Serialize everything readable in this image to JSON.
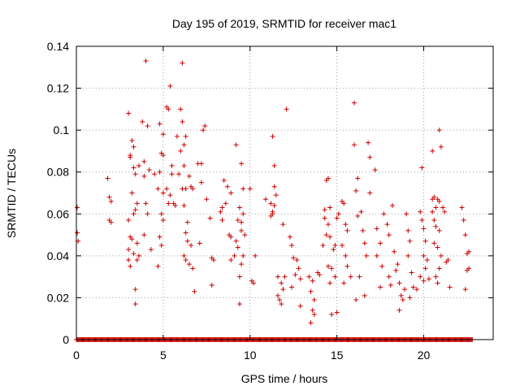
{
  "chart_data": {
    "type": "scatter",
    "title": "Day 195 of 2019, SRMTID for receiver mac1",
    "xlabel": "GPS time / hours",
    "ylabel": "SRMTID / TECUs",
    "xlim": [
      0,
      24
    ],
    "ylim": [
      0,
      0.14
    ],
    "xticks": [
      0,
      5,
      10,
      15,
      20
    ],
    "xtick_labels": [
      "0",
      "5",
      "10",
      "15",
      "20"
    ],
    "yticks": [
      0,
      0.02,
      0.04,
      0.06,
      0.08,
      0.1,
      0.12,
      0.14
    ],
    "ytick_labels": [
      "0",
      "0.02",
      "0.04",
      "0.06",
      "0.08",
      "0.1",
      "0.12",
      "0.14"
    ],
    "grid": true,
    "marker": "plus",
    "color": "#cc0000",
    "zero_baseline": {
      "x_start": 0,
      "x_end": 22.8,
      "step": 0.05,
      "y": 0
    },
    "series": [
      {
        "name": "SRMTID",
        "points": [
          [
            0.05,
            0.063
          ],
          [
            0.05,
            0.051
          ],
          [
            0.1,
            0.047
          ],
          [
            1.8,
            0.077
          ],
          [
            1.9,
            0.068
          ],
          [
            2.0,
            0.066
          ],
          [
            1.9,
            0.057
          ],
          [
            2.0,
            0.056
          ],
          [
            3.0,
            0.108
          ],
          [
            3.1,
            0.088
          ],
          [
            3.2,
            0.095
          ],
          [
            3.3,
            0.092
          ],
          [
            3.1,
            0.087
          ],
          [
            3.3,
            0.082
          ],
          [
            3.4,
            0.079
          ],
          [
            3.6,
            0.083
          ],
          [
            3.2,
            0.07
          ],
          [
            3.4,
            0.062
          ],
          [
            3.5,
            0.065
          ],
          [
            3.3,
            0.06
          ],
          [
            3.0,
            0.057
          ],
          [
            3.1,
            0.049
          ],
          [
            3.2,
            0.048
          ],
          [
            3.5,
            0.046
          ],
          [
            3.0,
            0.043
          ],
          [
            3.3,
            0.041
          ],
          [
            3.6,
            0.04
          ],
          [
            3.5,
            0.038
          ],
          [
            3.0,
            0.038
          ],
          [
            3.1,
            0.035
          ],
          [
            3.4,
            0.024
          ],
          [
            3.4,
            0.017
          ],
          [
            3.8,
            0.104
          ],
          [
            4.1,
            0.102
          ],
          [
            4.0,
            0.133
          ],
          [
            3.9,
            0.085
          ],
          [
            3.9,
            0.078
          ],
          [
            4.2,
            0.081
          ],
          [
            4.5,
            0.079
          ],
          [
            4.0,
            0.065
          ],
          [
            4.1,
            0.06
          ],
          [
            3.9,
            0.05
          ],
          [
            4.3,
            0.043
          ],
          [
            4.8,
            0.103
          ],
          [
            5.0,
            0.098
          ],
          [
            4.9,
            0.089
          ],
          [
            5.0,
            0.088
          ],
          [
            4.8,
            0.08
          ],
          [
            4.7,
            0.072
          ],
          [
            5.0,
            0.07
          ],
          [
            5.2,
            0.072
          ],
          [
            5.4,
            0.069
          ],
          [
            5.3,
            0.065
          ],
          [
            4.9,
            0.06
          ],
          [
            5.0,
            0.057
          ],
          [
            4.8,
            0.049
          ],
          [
            4.9,
            0.045
          ],
          [
            4.7,
            0.035
          ],
          [
            5.2,
            0.111
          ],
          [
            5.4,
            0.121
          ],
          [
            5.3,
            0.11
          ],
          [
            5.5,
            0.083
          ],
          [
            5.5,
            0.079
          ],
          [
            5.6,
            0.065
          ],
          [
            5.7,
            0.064
          ],
          [
            6.1,
            0.132
          ],
          [
            6.0,
            0.11
          ],
          [
            6.1,
            0.104
          ],
          [
            5.8,
            0.097
          ],
          [
            6.0,
            0.09
          ],
          [
            6.2,
            0.093
          ],
          [
            6.3,
            0.097
          ],
          [
            6.2,
            0.083
          ],
          [
            5.9,
            0.079
          ],
          [
            6.1,
            0.072
          ],
          [
            6.3,
            0.072
          ],
          [
            6.2,
            0.064
          ],
          [
            6.5,
            0.078
          ],
          [
            6.6,
            0.073
          ],
          [
            6.7,
            0.072
          ],
          [
            6.4,
            0.056
          ],
          [
            6.3,
            0.051
          ],
          [
            6.4,
            0.047
          ],
          [
            6.6,
            0.045
          ],
          [
            6.2,
            0.04
          ],
          [
            6.3,
            0.038
          ],
          [
            6.5,
            0.036
          ],
          [
            6.7,
            0.034
          ],
          [
            6.8,
            0.023
          ],
          [
            7.0,
            0.084
          ],
          [
            7.2,
            0.084
          ],
          [
            7.3,
            0.1
          ],
          [
            7.4,
            0.102
          ],
          [
            7.2,
            0.075
          ],
          [
            7.5,
            0.067
          ],
          [
            7.1,
            0.046
          ],
          [
            7.7,
            0.058
          ],
          [
            7.8,
            0.039
          ],
          [
            7.9,
            0.038
          ],
          [
            7.8,
            0.026
          ],
          [
            8.5,
            0.076
          ],
          [
            8.6,
            0.065
          ],
          [
            8.4,
            0.063
          ],
          [
            8.3,
            0.061
          ],
          [
            8.4,
            0.057
          ],
          [
            8.7,
            0.073
          ],
          [
            8.9,
            0.07
          ],
          [
            8.8,
            0.05
          ],
          [
            8.9,
            0.049
          ],
          [
            9.2,
            0.093
          ],
          [
            9.5,
            0.084
          ],
          [
            9.6,
            0.072
          ],
          [
            9.4,
            0.063
          ],
          [
            9.6,
            0.06
          ],
          [
            9.3,
            0.057
          ],
          [
            9.5,
            0.056
          ],
          [
            9.5,
            0.052
          ],
          [
            9.7,
            0.05
          ],
          [
            9.2,
            0.047
          ],
          [
            9.3,
            0.044
          ],
          [
            9.6,
            0.04
          ],
          [
            9.5,
            0.036
          ],
          [
            9.4,
            0.03
          ],
          [
            9.4,
            0.017
          ],
          [
            9.1,
            0.04
          ],
          [
            8.9,
            0.038
          ],
          [
            10.0,
            0.072
          ],
          [
            10.1,
            0.028
          ],
          [
            10.2,
            0.027
          ],
          [
            10.3,
            0.04
          ],
          [
            10.9,
            0.067
          ],
          [
            11.2,
            0.065
          ],
          [
            11.3,
            0.061
          ],
          [
            11.2,
            0.059
          ],
          [
            11.3,
            0.06
          ],
          [
            11.4,
            0.064
          ],
          [
            11.3,
            0.097
          ],
          [
            11.4,
            0.083
          ],
          [
            11.4,
            0.073
          ],
          [
            11.5,
            0.069
          ],
          [
            11.6,
            0.03
          ],
          [
            11.8,
            0.027
          ],
          [
            11.6,
            0.021
          ],
          [
            11.7,
            0.019
          ],
          [
            11.8,
            0.017
          ],
          [
            11.9,
            0.024
          ],
          [
            12.0,
            0.03
          ],
          [
            12.1,
            0.11
          ],
          [
            11.9,
            0.055
          ],
          [
            12.3,
            0.049
          ],
          [
            12.4,
            0.045
          ],
          [
            12.5,
            0.039
          ],
          [
            12.7,
            0.038
          ],
          [
            12.8,
            0.034
          ],
          [
            12.6,
            0.031
          ],
          [
            12.9,
            0.029
          ],
          [
            12.9,
            0.016
          ],
          [
            12.4,
            0.025
          ],
          [
            13.4,
            0.03
          ],
          [
            13.6,
            0.028
          ],
          [
            13.5,
            0.023
          ],
          [
            13.7,
            0.019
          ],
          [
            13.6,
            0.014
          ],
          [
            13.7,
            0.012
          ],
          [
            13.5,
            0.008
          ],
          [
            13.9,
            0.032
          ],
          [
            14.0,
            0.031
          ],
          [
            14.2,
            0.045
          ],
          [
            14.3,
            0.062
          ],
          [
            14.4,
            0.076
          ],
          [
            14.5,
            0.077
          ],
          [
            14.3,
            0.058
          ],
          [
            14.6,
            0.063
          ],
          [
            14.5,
            0.055
          ],
          [
            14.4,
            0.05
          ],
          [
            14.6,
            0.049
          ],
          [
            14.5,
            0.035
          ],
          [
            14.7,
            0.034
          ],
          [
            14.8,
            0.043
          ],
          [
            14.9,
            0.03
          ],
          [
            14.6,
            0.027
          ],
          [
            14.7,
            0.012
          ],
          [
            15.0,
            0.013
          ],
          [
            14.9,
            0.045
          ],
          [
            15.1,
            0.06
          ],
          [
            15.0,
            0.058
          ],
          [
            15.3,
            0.066
          ],
          [
            15.4,
            0.065
          ],
          [
            15.5,
            0.055
          ],
          [
            15.6,
            0.052
          ],
          [
            15.3,
            0.045
          ],
          [
            15.5,
            0.04
          ],
          [
            15.6,
            0.035
          ],
          [
            15.4,
            0.027
          ],
          [
            15.8,
            0.03
          ],
          [
            16.0,
            0.113
          ],
          [
            16.0,
            0.093
          ],
          [
            16.2,
            0.077
          ],
          [
            16.1,
            0.071
          ],
          [
            16.4,
            0.061
          ],
          [
            16.2,
            0.059
          ],
          [
            16.5,
            0.052
          ],
          [
            16.6,
            0.046
          ],
          [
            16.7,
            0.04
          ],
          [
            16.3,
            0.03
          ],
          [
            16.1,
            0.019
          ],
          [
            16.6,
            0.021
          ],
          [
            16.8,
            0.094
          ],
          [
            16.9,
            0.087
          ],
          [
            16.9,
            0.07
          ],
          [
            17.2,
            0.081
          ],
          [
            17.3,
            0.053
          ],
          [
            17.5,
            0.046
          ],
          [
            17.3,
            0.04
          ],
          [
            17.6,
            0.035
          ],
          [
            17.5,
            0.025
          ],
          [
            17.7,
            0.06
          ],
          [
            17.9,
            0.055
          ],
          [
            18.0,
            0.03
          ],
          [
            18.1,
            0.026
          ],
          [
            18.2,
            0.064
          ],
          [
            18.0,
            0.05
          ],
          [
            18.3,
            0.042
          ],
          [
            18.5,
            0.036
          ],
          [
            18.4,
            0.033
          ],
          [
            18.6,
            0.027
          ],
          [
            18.7,
            0.021
          ],
          [
            18.8,
            0.019
          ],
          [
            18.6,
            0.014
          ],
          [
            18.9,
            0.024
          ],
          [
            19.0,
            0.06
          ],
          [
            19.1,
            0.052
          ],
          [
            19.2,
            0.047
          ],
          [
            19.1,
            0.04
          ],
          [
            19.3,
            0.032
          ],
          [
            19.4,
            0.025
          ],
          [
            19.2,
            0.02
          ],
          [
            19.6,
            0.024
          ],
          [
            19.9,
            0.082
          ],
          [
            19.8,
            0.061
          ],
          [
            19.9,
            0.057
          ],
          [
            20.0,
            0.053
          ],
          [
            20.1,
            0.047
          ],
          [
            20.0,
            0.04
          ],
          [
            20.2,
            0.038
          ],
          [
            19.8,
            0.03
          ],
          [
            20.0,
            0.028
          ],
          [
            20.1,
            0.034
          ],
          [
            20.3,
            0.029
          ],
          [
            20.5,
            0.067
          ],
          [
            20.6,
            0.068
          ],
          [
            20.5,
            0.09
          ],
          [
            20.8,
            0.067
          ],
          [
            20.9,
            0.066
          ],
          [
            20.7,
            0.063
          ],
          [
            20.5,
            0.061
          ],
          [
            20.6,
            0.057
          ],
          [
            20.7,
            0.054
          ],
          [
            20.9,
            0.052
          ],
          [
            20.6,
            0.046
          ],
          [
            20.8,
            0.044
          ],
          [
            21.0,
            0.04
          ],
          [
            20.9,
            0.034
          ],
          [
            20.7,
            0.03
          ],
          [
            20.8,
            0.027
          ],
          [
            20.9,
            0.1
          ],
          [
            21.0,
            0.092
          ],
          [
            21.1,
            0.063
          ],
          [
            21.2,
            0.061
          ],
          [
            21.3,
            0.037
          ],
          [
            21.4,
            0.038
          ],
          [
            21.5,
            0.025
          ],
          [
            22.2,
            0.063
          ],
          [
            22.3,
            0.057
          ],
          [
            22.4,
            0.05
          ],
          [
            22.5,
            0.041
          ],
          [
            22.6,
            0.042
          ],
          [
            22.6,
            0.034
          ],
          [
            22.5,
            0.033
          ],
          [
            22.4,
            0.024
          ]
        ]
      }
    ]
  }
}
